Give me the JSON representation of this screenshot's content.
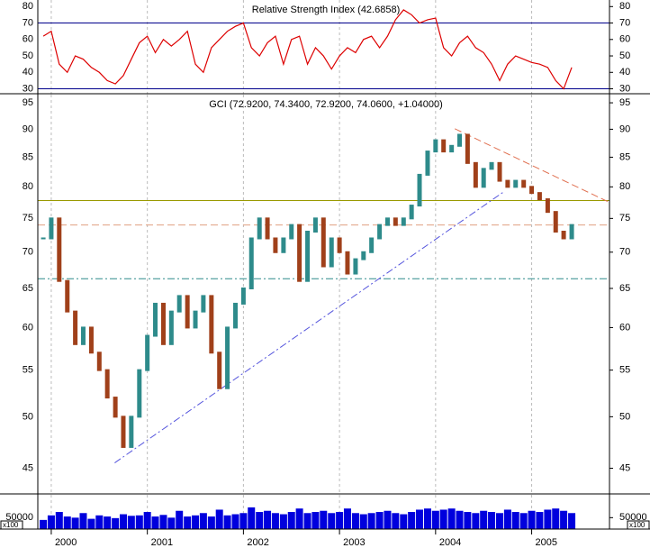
{
  "chart_data": [
    {
      "type": "line",
      "title": "Relative Strength Index (42.6858)",
      "color": "#dd0000",
      "x": [
        1999.917,
        2000,
        2000.083,
        2000.167,
        2000.25,
        2000.333,
        2000.417,
        2000.5,
        2000.583,
        2000.667,
        2000.75,
        2000.833,
        2000.917,
        2001,
        2001.083,
        2001.167,
        2001.25,
        2001.333,
        2001.417,
        2001.5,
        2001.583,
        2001.667,
        2001.75,
        2001.833,
        2001.917,
        2002,
        2002.083,
        2002.167,
        2002.25,
        2002.333,
        2002.417,
        2002.5,
        2002.583,
        2002.667,
        2002.75,
        2002.833,
        2002.917,
        2003,
        2003.083,
        2003.167,
        2003.25,
        2003.333,
        2003.417,
        2003.5,
        2003.583,
        2003.667,
        2003.75,
        2003.833,
        2003.917,
        2004,
        2004.083,
        2004.167,
        2004.25,
        2004.333,
        2004.417,
        2004.5,
        2004.583,
        2004.667,
        2004.75,
        2004.833,
        2004.917,
        2005,
        2005.083,
        2005.167,
        2005.25,
        2005.333,
        2005.417
      ],
      "values": [
        62,
        65,
        45,
        40,
        50,
        48,
        43,
        40,
        35,
        33,
        38,
        48,
        58,
        62,
        52,
        60,
        56,
        60,
        65,
        45,
        40,
        55,
        60,
        65,
        68,
        70,
        55,
        50,
        58,
        62,
        45,
        60,
        62,
        45,
        55,
        50,
        42,
        50,
        55,
        52,
        60,
        62,
        55,
        62,
        72,
        78,
        75,
        70,
        72,
        73,
        55,
        50,
        58,
        62,
        55,
        52,
        45,
        35,
        45,
        50,
        48,
        46,
        45,
        43,
        35,
        30,
        43
      ],
      "xlim": [
        1999.86,
        2005.81
      ],
      "xticks": [
        2000,
        2001,
        2002,
        2003,
        2004,
        2005
      ],
      "ylim": [
        27,
        84
      ],
      "yticks": [
        30,
        40,
        50,
        60,
        70,
        80
      ],
      "levels": [
        {
          "value": 70,
          "color": "#00008b",
          "style": "solid"
        },
        {
          "value": 30,
          "color": "#00008b",
          "style": "solid"
        }
      ]
    },
    {
      "type": "stock",
      "title": "GCI (72.9200, 74.3400, 72.9200, 74.0600, +1.04000)",
      "up_color": "#2e8b8b",
      "down_color": "#a0401a",
      "log_scale": true,
      "x": [
        1999.917,
        2000,
        2000.083,
        2000.167,
        2000.25,
        2000.333,
        2000.417,
        2000.5,
        2000.583,
        2000.667,
        2000.75,
        2000.833,
        2000.917,
        2001,
        2001.083,
        2001.167,
        2001.25,
        2001.333,
        2001.417,
        2001.5,
        2001.583,
        2001.667,
        2001.75,
        2001.833,
        2001.917,
        2002,
        2002.083,
        2002.167,
        2002.25,
        2002.333,
        2002.417,
        2002.5,
        2002.583,
        2002.667,
        2002.75,
        2002.833,
        2002.917,
        2003,
        2003.083,
        2003.167,
        2003.25,
        2003.333,
        2003.417,
        2003.5,
        2003.583,
        2003.667,
        2003.75,
        2003.833,
        2003.917,
        2004,
        2004.083,
        2004.167,
        2004.25,
        2004.333,
        2004.417,
        2004.5,
        2004.583,
        2004.667,
        2004.75,
        2004.833,
        2004.917,
        2005,
        2005.083,
        2005.167,
        2005.25,
        2005.333,
        2005.417
      ],
      "values": [
        72,
        75,
        66,
        62,
        58,
        60,
        57,
        55,
        52,
        50,
        47,
        50,
        55,
        59,
        63,
        58,
        62,
        64,
        60,
        62,
        64,
        57,
        53,
        60,
        63,
        65,
        72,
        75,
        72,
        70,
        72,
        74,
        66,
        73,
        75,
        68,
        72,
        70,
        67,
        69,
        70,
        72,
        74,
        75,
        74,
        75,
        77,
        82,
        86,
        88,
        86,
        87,
        89,
        84,
        80,
        83,
        84,
        81,
        80,
        81,
        80,
        79,
        78,
        76,
        73,
        72,
        74
      ],
      "xlim": [
        1999.86,
        2005.81
      ],
      "xticks": [
        2000,
        2001,
        2002,
        2003,
        2004,
        2005
      ],
      "ylim": [
        42.7,
        96.6
      ],
      "yticks": [
        45,
        50,
        55,
        60,
        65,
        70,
        75,
        80,
        85,
        90,
        95
      ],
      "levels": [
        {
          "value": 77.8,
          "color": "#999900",
          "style": "solid"
        },
        {
          "value": 74,
          "color": "#e0a080",
          "style": "dash"
        },
        {
          "value": 66.3,
          "color": "#2e8b8b",
          "style": "dashdot"
        }
      ],
      "trendlines": [
        {
          "x": [
            2000.66,
            2004.71
          ],
          "y": [
            45.5,
            79.2
          ],
          "color": "#5555dd",
          "style": "dashdot"
        },
        {
          "x": [
            2004.2,
            2005.81
          ],
          "y": [
            90.1,
            77.5
          ],
          "color": "#e07050",
          "style": "dash"
        }
      ]
    },
    {
      "type": "bar",
      "color": "#0000dd",
      "unit": "x100",
      "x": [
        1999.917,
        2000,
        2000.083,
        2000.167,
        2000.25,
        2000.333,
        2000.417,
        2000.5,
        2000.583,
        2000.667,
        2000.75,
        2000.833,
        2000.917,
        2001,
        2001.083,
        2001.167,
        2001.25,
        2001.333,
        2001.417,
        2001.5,
        2001.583,
        2001.667,
        2001.75,
        2001.833,
        2001.917,
        2002,
        2002.083,
        2002.167,
        2002.25,
        2002.333,
        2002.417,
        2002.5,
        2002.583,
        2002.667,
        2002.75,
        2002.833,
        2002.917,
        2003,
        2003.083,
        2003.167,
        2003.25,
        2003.333,
        2003.417,
        2003.5,
        2003.583,
        2003.667,
        2003.75,
        2003.833,
        2003.917,
        2004,
        2004.083,
        2004.167,
        2004.25,
        2004.333,
        2004.417,
        2004.5,
        2004.583,
        2004.667,
        2004.75,
        2004.833,
        2004.917,
        2005,
        2005.083,
        2005.167,
        2005.25,
        2005.333,
        2005.417
      ],
      "values": [
        40000,
        60000,
        75000,
        55000,
        50000,
        70000,
        45000,
        60000,
        55000,
        48000,
        65000,
        58000,
        60000,
        75000,
        55000,
        62000,
        50000,
        80000,
        55000,
        60000,
        70000,
        55000,
        85000,
        60000,
        65000,
        70000,
        95000,
        75000,
        80000,
        70000,
        65000,
        75000,
        90000,
        70000,
        75000,
        80000,
        70000,
        75000,
        90000,
        70000,
        65000,
        70000,
        75000,
        80000,
        70000,
        65000,
        75000,
        85000,
        90000,
        80000,
        85000,
        90000,
        80000,
        75000,
        70000,
        80000,
        75000,
        70000,
        85000,
        75000,
        70000,
        80000,
        75000,
        85000,
        90000,
        80000,
        70000
      ],
      "xlim": [
        1999.86,
        2005.81
      ],
      "xticks": [
        2000,
        2001,
        2002,
        2003,
        2004,
        2005
      ],
      "ylim": [
        0,
        150000
      ],
      "yticks": [
        50000
      ]
    }
  ]
}
